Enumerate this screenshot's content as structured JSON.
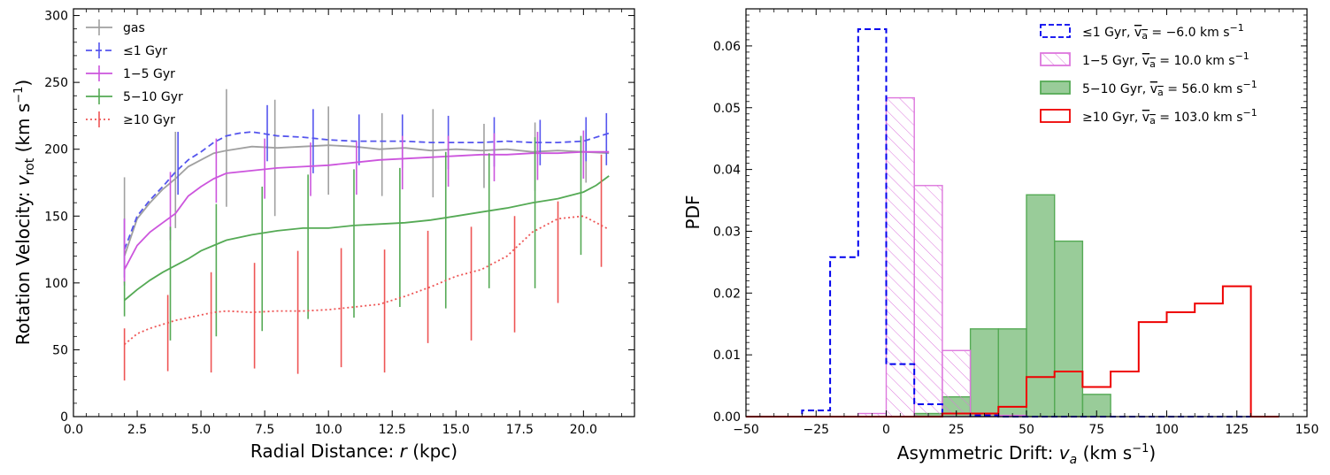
{
  "chart_data": [
    {
      "type": "line",
      "title": "",
      "xlabel": "Radial Distance: r (kpc)",
      "ylabel": "Rotation Velocity: v_rot (km s^-1)",
      "xlim": [
        0,
        22
      ],
      "ylim": [
        0,
        305
      ],
      "xticks": [
        0.0,
        2.5,
        5.0,
        7.5,
        10.0,
        12.5,
        15.0,
        17.5,
        20.0
      ],
      "xtick_labels": [
        "0.0",
        "2.5",
        "5.0",
        "7.5",
        "10.0",
        "12.5",
        "15.0",
        "17.5",
        "20.0"
      ],
      "yticks": [
        0,
        50,
        100,
        150,
        200,
        250,
        300
      ],
      "ytick_labels": [
        "0",
        "50",
        "100",
        "150",
        "200",
        "250",
        "300"
      ],
      "legend_position": "top-left",
      "series": [
        {
          "name": "gas",
          "color": "#a0a0a0",
          "dash": "solid",
          "x": [
            2.0,
            2.5,
            3.0,
            3.5,
            4.0,
            4.5,
            5.0,
            5.5,
            6.0,
            7.0,
            8.0,
            9.0,
            10.0,
            11.0,
            12.0,
            13.0,
            14.0,
            15.0,
            16.0,
            17.0,
            18.0,
            19.0,
            20.0,
            21.0
          ],
          "y": [
            120,
            148,
            160,
            170,
            178,
            187,
            192,
            197,
            199,
            202,
            201,
            202,
            203,
            202,
            200,
            201,
            199,
            200,
            199,
            200,
            198,
            199,
            198,
            197
          ],
          "errbars": [
            {
              "x": 2.0,
              "lo": 100,
              "hi": 179
            },
            {
              "x": 4.0,
              "lo": 141,
              "hi": 213
            },
            {
              "x": 6.0,
              "lo": 157,
              "hi": 245
            },
            {
              "x": 7.9,
              "lo": 150,
              "hi": 237
            },
            {
              "x": 10.0,
              "lo": 166,
              "hi": 232
            },
            {
              "x": 12.1,
              "lo": 165,
              "hi": 227
            },
            {
              "x": 14.1,
              "lo": 164,
              "hi": 230
            },
            {
              "x": 16.1,
              "lo": 171,
              "hi": 219
            },
            {
              "x": 18.1,
              "lo": 169,
              "hi": 220
            },
            {
              "x": 20.1,
              "lo": 175,
              "hi": 215
            }
          ]
        },
        {
          "name": "≤1 Gyr",
          "color": "#5555ee",
          "dash": "dashed",
          "x": [
            2.0,
            2.5,
            3.0,
            3.5,
            4.0,
            4.5,
            5.0,
            5.5,
            6.0,
            6.5,
            7.0,
            8.0,
            9.0,
            10.0,
            11.0,
            12.0,
            13.0,
            14.0,
            15.0,
            16.0,
            17.0,
            18.0,
            19.0,
            20.0,
            21.0
          ],
          "y": [
            125,
            150,
            162,
            172,
            183,
            192,
            198,
            205,
            210,
            212,
            213,
            210,
            209,
            207,
            206,
            206,
            206,
            205,
            205,
            205,
            206,
            205,
            205,
            206,
            212
          ],
          "errbars": [
            {
              "x": 2.0,
              "lo": 104,
              "hi": 148
            },
            {
              "x": 4.1,
              "lo": 166,
              "hi": 213
            },
            {
              "x": 7.6,
              "lo": 191,
              "hi": 233
            },
            {
              "x": 9.4,
              "lo": 182,
              "hi": 230
            },
            {
              "x": 11.2,
              "lo": 188,
              "hi": 226
            },
            {
              "x": 12.9,
              "lo": 186,
              "hi": 226
            },
            {
              "x": 14.7,
              "lo": 185,
              "hi": 225
            },
            {
              "x": 16.5,
              "lo": 187,
              "hi": 224
            },
            {
              "x": 18.3,
              "lo": 188,
              "hi": 222
            },
            {
              "x": 20.1,
              "lo": 191,
              "hi": 224
            },
            {
              "x": 20.9,
              "lo": 188,
              "hi": 227
            }
          ]
        },
        {
          "name": "1−5 Gyr",
          "color": "#cc55dd",
          "dash": "solid",
          "x": [
            2.0,
            2.5,
            3.0,
            3.5,
            4.0,
            4.5,
            5.0,
            5.5,
            6.0,
            7.0,
            8.0,
            9.0,
            10.0,
            11.0,
            12.0,
            13.0,
            14.0,
            15.0,
            16.0,
            17.0,
            18.0,
            19.0,
            20.0,
            21.0
          ],
          "y": [
            110,
            128,
            138,
            145,
            152,
            165,
            172,
            178,
            182,
            184,
            186,
            187,
            188,
            190,
            192,
            193,
            194,
            195,
            196,
            196,
            197,
            197,
            198,
            198
          ],
          "errbars": [
            {
              "x": 2.0,
              "lo": 98,
              "hi": 148
            },
            {
              "x": 3.8,
              "lo": 132,
              "hi": 183
            },
            {
              "x": 5.6,
              "lo": 160,
              "hi": 208
            },
            {
              "x": 7.5,
              "lo": 163,
              "hi": 208
            },
            {
              "x": 9.3,
              "lo": 165,
              "hi": 205
            },
            {
              "x": 11.1,
              "lo": 166,
              "hi": 206
            },
            {
              "x": 12.9,
              "lo": 170,
              "hi": 210
            },
            {
              "x": 14.7,
              "lo": 172,
              "hi": 210
            },
            {
              "x": 16.5,
              "lo": 176,
              "hi": 212
            },
            {
              "x": 18.2,
              "lo": 177,
              "hi": 213
            },
            {
              "x": 20.0,
              "lo": 178,
              "hi": 214
            }
          ]
        },
        {
          "name": "5−10 Gyr",
          "color": "#55aa55",
          "dash": "solid",
          "x": [
            2.0,
            2.5,
            3.0,
            3.5,
            4.0,
            4.5,
            5.0,
            5.5,
            6.0,
            7.0,
            8.0,
            9.0,
            10.0,
            11.0,
            12.0,
            13.0,
            14.0,
            15.0,
            16.0,
            17.0,
            18.0,
            19.0,
            20.0,
            20.5,
            21.0
          ],
          "y": [
            87,
            95,
            102,
            108,
            113,
            118,
            124,
            128,
            132,
            136,
            139,
            141,
            141,
            143,
            144,
            145,
            147,
            150,
            153,
            156,
            160,
            163,
            168,
            173,
            180
          ],
          "errbars": [
            {
              "x": 2.0,
              "lo": 75,
              "hi": 101
            },
            {
              "x": 3.8,
              "lo": 57,
              "hi": 142
            },
            {
              "x": 5.6,
              "lo": 60,
              "hi": 159
            },
            {
              "x": 7.4,
              "lo": 64,
              "hi": 172
            },
            {
              "x": 9.2,
              "lo": 73,
              "hi": 181
            },
            {
              "x": 11.0,
              "lo": 74,
              "hi": 185
            },
            {
              "x": 12.8,
              "lo": 82,
              "hi": 186
            },
            {
              "x": 14.6,
              "lo": 81,
              "hi": 198
            },
            {
              "x": 16.3,
              "lo": 96,
              "hi": 197
            },
            {
              "x": 18.1,
              "lo": 96,
              "hi": 209
            },
            {
              "x": 19.9,
              "lo": 121,
              "hi": 210
            }
          ]
        },
        {
          "name": "≥10 Gyr",
          "color": "#ee5555",
          "dash": "dotted",
          "x": [
            2.0,
            2.5,
            3.0,
            3.5,
            4.0,
            4.5,
            5.0,
            5.5,
            6.0,
            7.0,
            8.0,
            9.0,
            10.0,
            11.0,
            12.0,
            13.0,
            14.0,
            15.0,
            16.0,
            17.0,
            18.0,
            19.0,
            20.0,
            20.5,
            21.0
          ],
          "y": [
            54,
            62,
            66,
            69,
            72,
            74,
            76,
            78,
            79,
            78,
            79,
            79,
            80,
            82,
            84,
            90,
            97,
            105,
            110,
            120,
            138,
            148,
            150,
            145,
            140
          ],
          "errbars": [
            {
              "x": 2.0,
              "lo": 27,
              "hi": 66
            },
            {
              "x": 3.7,
              "lo": 34,
              "hi": 91
            },
            {
              "x": 5.4,
              "lo": 33,
              "hi": 108
            },
            {
              "x": 7.1,
              "lo": 36,
              "hi": 115
            },
            {
              "x": 8.8,
              "lo": 32,
              "hi": 124
            },
            {
              "x": 10.5,
              "lo": 37,
              "hi": 126
            },
            {
              "x": 12.2,
              "lo": 33,
              "hi": 125
            },
            {
              "x": 13.9,
              "lo": 55,
              "hi": 139
            },
            {
              "x": 15.6,
              "lo": 57,
              "hi": 142
            },
            {
              "x": 17.3,
              "lo": 63,
              "hi": 150
            },
            {
              "x": 19.0,
              "lo": 85,
              "hi": 161
            },
            {
              "x": 20.7,
              "lo": 112,
              "hi": 196
            }
          ]
        }
      ]
    },
    {
      "type": "bar",
      "subtype": "step-histogram",
      "title": "",
      "xlabel": "Asymmetric Drift: v_a (km s^-1)",
      "ylabel": "PDF",
      "xlim": [
        -50,
        150
      ],
      "ylim": [
        0,
        0.066
      ],
      "xticks": [
        -50,
        -25,
        0,
        25,
        50,
        75,
        100,
        125,
        150
      ],
      "xtick_labels": [
        "−50",
        "−25",
        "0",
        "25",
        "50",
        "75",
        "100",
        "125",
        "150"
      ],
      "yticks": [
        0.0,
        0.01,
        0.02,
        0.03,
        0.04,
        0.05,
        0.06
      ],
      "ytick_labels": [
        "0.00",
        "0.01",
        "0.02",
        "0.03",
        "0.04",
        "0.05",
        "0.06"
      ],
      "legend_position": "top-right",
      "bin_edges": [
        -50,
        -40,
        -30,
        -20,
        -10,
        0,
        10,
        20,
        30,
        40,
        50,
        60,
        70,
        80,
        90,
        100,
        110,
        120,
        130,
        140
      ],
      "series": [
        {
          "name": "≤1 Gyr",
          "mean_label": "−6.0",
          "legend_label": "≤1 Gyr, v̄a = −6.0 km s^-1",
          "color": "#0000ee",
          "style": "step-dashed",
          "values": [
            0,
            0,
            0.001,
            0.0258,
            0.0627,
            0.0085,
            0.002,
            0.0005,
            0.0002,
            0,
            0,
            0,
            0,
            0,
            0,
            0,
            0,
            0,
            0
          ]
        },
        {
          "name": "1−5 Gyr",
          "mean_label": "10.0",
          "legend_label": "1−5 Gyr, v̄a = 10.0 km s^-1",
          "color": "#dd77dd",
          "style": "hatched",
          "values": [
            0,
            0,
            0,
            0,
            0.0005,
            0.0516,
            0.0374,
            0.0107,
            0.0005,
            0.0002,
            0,
            0,
            0,
            0,
            0,
            0,
            0,
            0,
            0
          ]
        },
        {
          "name": "5−10 Gyr",
          "mean_label": "56.0",
          "legend_label": "5−10 Gyr, v̄a = 56.0 km s^-1",
          "color": "#55aa55",
          "style": "filled",
          "values": [
            0,
            0,
            0,
            0,
            0,
            0,
            0.0005,
            0.0032,
            0.0142,
            0.0142,
            0.0359,
            0.0284,
            0.0036,
            0,
            0,
            0,
            0,
            0,
            0
          ]
        },
        {
          "name": "≥10 Gyr",
          "mean_label": "103.0",
          "legend_label": "≥10 Gyr, v̄a = 103.0 km s^-1",
          "color": "#ee0000",
          "style": "step-solid",
          "values": [
            0,
            0,
            0,
            0,
            0,
            0,
            0,
            0.0005,
            0.0005,
            0.0016,
            0.0064,
            0.0073,
            0.0048,
            0.0073,
            0.0153,
            0.0169,
            0.0183,
            0.0211,
            0
          ]
        }
      ]
    }
  ]
}
